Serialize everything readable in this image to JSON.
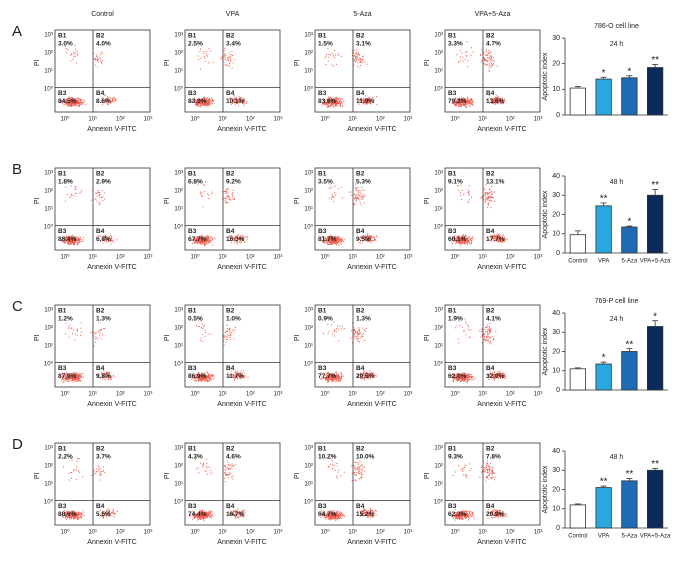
{
  "flow_panels": {
    "column_titles": [
      "Control",
      "VPA",
      "5-Aza",
      "VPA+5-Aza"
    ],
    "x_label": "Annexin V-FITC",
    "y_label": "PI",
    "ticks": [
      "10⁰",
      "10¹",
      "10²",
      "10³"
    ],
    "quadrant_names": [
      "B1",
      "B2",
      "B3",
      "B4"
    ],
    "rows": [
      {
        "label": "A",
        "plots": [
          [
            "3.0%",
            "4.0%",
            "84.5%",
            "8.6%"
          ],
          [
            "2.5%",
            "3.4%",
            "83.9%",
            "10.1%"
          ],
          [
            "1.5%",
            "3.1%",
            "83.6%",
            "11.9%"
          ],
          [
            "3.3%",
            "4.7%",
            "79.2%",
            "13.6%"
          ]
        ]
      },
      {
        "label": "B",
        "plots": [
          [
            "1.8%",
            "2.9%",
            "88.4%",
            "6.8%"
          ],
          [
            "6.8%",
            "9.2%",
            "67.7%",
            "16.3%"
          ],
          [
            "3.5%",
            "5.3%",
            "81.7%",
            "9.5%"
          ],
          [
            "9.1%",
            "13.1%",
            "60.1%",
            "17.7%"
          ]
        ]
      },
      {
        "label": "C",
        "plots": [
          [
            "1.2%",
            "1.3%",
            "87.9%",
            "9.8%"
          ],
          [
            "0.5%",
            "1.0%",
            "86.9%",
            "11.7%"
          ],
          [
            "0.9%",
            "1.3%",
            "77.7%",
            "20.5%"
          ],
          [
            "1.9%",
            "4.1%",
            "62.0%",
            "32.0%"
          ]
        ]
      },
      {
        "label": "D",
        "plots": [
          [
            "2.2%",
            "3.7%",
            "88.6%",
            "5.5%"
          ],
          [
            "4.3%",
            "4.6%",
            "74.4%",
            "16.7%"
          ],
          [
            "10.2%",
            "10.0%",
            "64.7%",
            "15.2%"
          ],
          [
            "9.3%",
            "7.8%",
            "62.0%",
            "20.9%"
          ]
        ]
      }
    ]
  },
  "chart_data": [
    {
      "type": "bar",
      "title": "786-O cell line",
      "subtitle": "24 h",
      "y_label": "Apoptotic index",
      "categories": [
        null,
        null,
        null,
        null
      ],
      "values": [
        10.5,
        14,
        14.5,
        18.5
      ],
      "errors": [
        0.6,
        0.7,
        0.8,
        1.2
      ],
      "annotations": [
        null,
        "*",
        "*",
        "**"
      ],
      "colors": [
        "#ffffff",
        "#29a8e0",
        "#1f6ab5",
        "#0b2b5a"
      ],
      "ylim": [
        0,
        30
      ],
      "yticks": [
        0,
        10,
        20,
        30
      ]
    },
    {
      "type": "bar",
      "subtitle": "48 h",
      "y_label": "Apoptotic index",
      "categories": [
        "Control",
        "VPA",
        "5-Aza",
        "VPA+5-Aza"
      ],
      "values": [
        9.5,
        24.5,
        13.5,
        30
      ],
      "errors": [
        2,
        1.5,
        0.5,
        3
      ],
      "annotations": [
        null,
        "**",
        "*",
        "**"
      ],
      "colors": [
        "#ffffff",
        "#29a8e0",
        "#1f6ab5",
        "#0b2b5a"
      ],
      "ylim": [
        0,
        40
      ],
      "yticks": [
        0,
        10,
        20,
        30,
        40
      ]
    },
    {
      "type": "bar",
      "title": "769-P cell line",
      "subtitle": "24 h",
      "y_label": "Apoptotic index",
      "categories": [
        null,
        null,
        null,
        null
      ],
      "values": [
        11,
        13.5,
        20,
        33
      ],
      "errors": [
        0.5,
        1,
        1.5,
        3
      ],
      "annotations": [
        null,
        "*",
        "**",
        "*"
      ],
      "colors": [
        "#ffffff",
        "#29a8e0",
        "#1f6ab5",
        "#0b2b5a"
      ],
      "ylim": [
        0,
        40
      ],
      "yticks": [
        0,
        10,
        20,
        30,
        40
      ]
    },
    {
      "type": "bar",
      "subtitle": "48 h",
      "y_label": "Apoptotic index",
      "categories": [
        "Control",
        "VPA",
        "5-Aza",
        "VPA+5-Aza"
      ],
      "values": [
        12,
        21,
        24.5,
        30
      ],
      "errors": [
        0.5,
        0.8,
        1.2,
        1
      ],
      "annotations": [
        null,
        "**",
        "**",
        "**"
      ],
      "colors": [
        "#ffffff",
        "#29a8e0",
        "#1f6ab5",
        "#0b2b5a"
      ],
      "ylim": [
        0,
        40
      ],
      "yticks": [
        0,
        10,
        20,
        30,
        40
      ]
    }
  ]
}
